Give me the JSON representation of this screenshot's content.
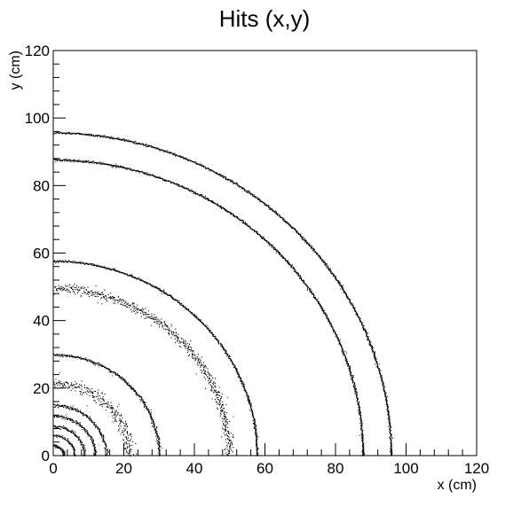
{
  "chart_data": {
    "type": "scatter",
    "title": "Hits (x,y)",
    "xlabel": "x (cm)",
    "ylabel": "y (cm)",
    "xlim": [
      0,
      120
    ],
    "ylim": [
      0,
      120
    ],
    "x_ticks": [
      0,
      20,
      40,
      60,
      80,
      100,
      120
    ],
    "y_ticks": [
      0,
      20,
      40,
      60,
      80,
      100,
      120
    ],
    "grid": false,
    "legend": "none",
    "marker_color": "#000000",
    "series": [
      {
        "ring_radius_cm": 3.0,
        "spread_cm": 0.2
      },
      {
        "ring_radius_cm": 6.0,
        "spread_cm": 0.2
      },
      {
        "ring_radius_cm": 8.8,
        "spread_cm": 0.2
      },
      {
        "ring_radius_cm": 11.8,
        "spread_cm": 0.2
      },
      {
        "ring_radius_cm": 15.0,
        "spread_cm": 0.2
      },
      {
        "ring_radius_cm": 21.5,
        "spread_cm": 0.8
      },
      {
        "ring_radius_cm": 30.0,
        "spread_cm": 0.2
      },
      {
        "ring_radius_cm": 49.7,
        "spread_cm": 0.6
      },
      {
        "ring_radius_cm": 57.7,
        "spread_cm": 0.15
      },
      {
        "ring_radius_cm": 87.7,
        "spread_cm": 0.15
      },
      {
        "ring_radius_cm": 95.7,
        "spread_cm": 0.15
      }
    ]
  }
}
